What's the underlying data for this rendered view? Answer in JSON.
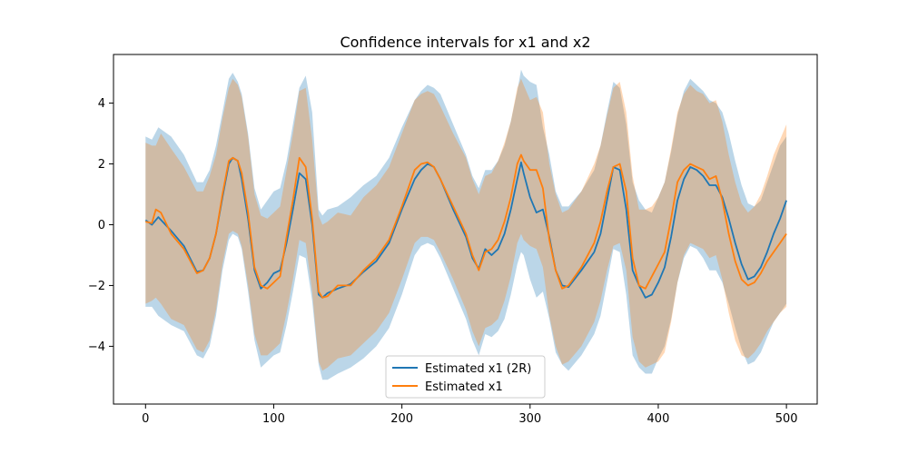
{
  "chart_data": {
    "type": "line",
    "title": "Confidence intervals for x1 and x2",
    "xlabel": "",
    "ylabel": "",
    "xlim": [
      -25,
      524
    ],
    "ylim": [
      -5.9,
      5.6
    ],
    "xticks": [
      0,
      100,
      200,
      300,
      400,
      500
    ],
    "xtick_labels": [
      "0",
      "100",
      "200",
      "300",
      "400",
      "500"
    ],
    "yticks": [
      -4,
      -2,
      0,
      2,
      4
    ],
    "ytick_labels": [
      "−4",
      "−2",
      "0",
      "2",
      "4"
    ],
    "grid": false,
    "legend_position": "lower center",
    "series": [
      {
        "name": "Estimated x1 (2R)",
        "color": "#1f77b4",
        "band_color": "#1f77b4",
        "band_opacity": 0.3,
        "x": [
          0,
          5,
          10,
          20,
          30,
          40,
          45,
          50,
          55,
          60,
          65,
          68,
          72,
          75,
          80,
          85,
          90,
          95,
          100,
          105,
          110,
          115,
          120,
          125,
          130,
          135,
          138,
          142,
          150,
          160,
          170,
          180,
          190,
          200,
          210,
          215,
          220,
          225,
          230,
          240,
          250,
          255,
          260,
          265,
          270,
          275,
          280,
          285,
          290,
          293,
          295,
          300,
          305,
          310,
          315,
          320,
          325,
          330,
          340,
          350,
          355,
          360,
          365,
          370,
          375,
          380,
          385,
          390,
          395,
          400,
          405,
          410,
          415,
          420,
          425,
          430,
          435,
          440,
          445,
          450,
          455,
          460,
          465,
          470,
          475,
          480,
          485,
          490,
          495,
          500
        ],
        "mean": [
          0.15,
          0.0,
          0.25,
          -0.2,
          -0.7,
          -1.55,
          -1.5,
          -1.1,
          -0.3,
          0.9,
          2.0,
          2.2,
          2.1,
          1.5,
          0.2,
          -1.5,
          -2.1,
          -1.9,
          -1.6,
          -1.5,
          -0.6,
          0.5,
          1.7,
          1.5,
          0.0,
          -2.3,
          -2.4,
          -2.25,
          -2.1,
          -1.95,
          -1.55,
          -1.2,
          -0.6,
          0.5,
          1.5,
          1.8,
          2.0,
          1.9,
          1.5,
          0.5,
          -0.4,
          -1.1,
          -1.45,
          -0.8,
          -1.0,
          -0.8,
          -0.3,
          0.5,
          1.5,
          2.05,
          1.7,
          0.9,
          0.4,
          0.5,
          -0.4,
          -1.5,
          -2.0,
          -2.05,
          -1.5,
          -0.9,
          -0.3,
          0.8,
          1.9,
          1.8,
          0.5,
          -1.5,
          -2.0,
          -2.4,
          -2.3,
          -1.9,
          -1.4,
          -0.4,
          0.8,
          1.5,
          1.9,
          1.8,
          1.6,
          1.3,
          1.3,
          0.9,
          0.2,
          -0.6,
          -1.3,
          -1.8,
          -1.7,
          -1.4,
          -0.9,
          -0.3,
          0.2,
          0.8
        ],
        "lower": [
          -2.7,
          -2.7,
          -3.0,
          -3.3,
          -3.5,
          -4.3,
          -4.4,
          -4.0,
          -3.0,
          -1.5,
          -0.5,
          -0.3,
          -0.4,
          -0.8,
          -2.2,
          -3.8,
          -4.7,
          -4.5,
          -4.3,
          -4.2,
          -3.3,
          -2.2,
          -1.0,
          -1.1,
          -2.5,
          -4.6,
          -5.1,
          -5.1,
          -4.9,
          -4.7,
          -4.4,
          -4.0,
          -3.4,
          -2.3,
          -1.0,
          -0.7,
          -0.6,
          -0.7,
          -1.1,
          -2.1,
          -3.1,
          -3.8,
          -4.3,
          -3.6,
          -3.7,
          -3.5,
          -3.1,
          -2.3,
          -1.3,
          -0.9,
          -1.0,
          -1.8,
          -2.4,
          -2.2,
          -3.1,
          -4.2,
          -4.6,
          -4.8,
          -4.3,
          -3.6,
          -3.0,
          -1.9,
          -0.8,
          -0.9,
          -2.3,
          -4.3,
          -4.7,
          -4.9,
          -4.9,
          -4.4,
          -4.0,
          -3.1,
          -1.9,
          -1.1,
          -0.7,
          -0.8,
          -1.1,
          -1.5,
          -1.5,
          -1.9,
          -2.6,
          -3.4,
          -4.1,
          -4.6,
          -4.5,
          -4.2,
          -3.7,
          -3.2,
          -2.9,
          -2.6
        ],
        "upper": [
          2.9,
          2.8,
          3.2,
          2.9,
          2.3,
          1.4,
          1.4,
          1.8,
          2.6,
          3.7,
          4.8,
          5.0,
          4.7,
          4.3,
          3.0,
          1.2,
          0.5,
          0.8,
          1.1,
          1.2,
          2.1,
          3.3,
          4.5,
          4.9,
          3.7,
          0.5,
          0.3,
          0.5,
          0.6,
          0.9,
          1.3,
          1.6,
          2.2,
          3.2,
          4.1,
          4.4,
          4.6,
          4.5,
          4.3,
          3.3,
          2.3,
          1.6,
          1.2,
          1.8,
          1.8,
          2.1,
          2.6,
          3.4,
          4.4,
          5.1,
          4.9,
          4.7,
          4.6,
          3.2,
          2.3,
          1.1,
          0.6,
          0.6,
          1.1,
          1.8,
          2.6,
          3.7,
          4.7,
          4.5,
          3.3,
          1.4,
          0.8,
          0.5,
          0.4,
          0.9,
          1.4,
          2.4,
          3.6,
          4.4,
          4.8,
          4.6,
          4.4,
          4.1,
          4.0,
          3.7,
          3.0,
          2.1,
          1.3,
          0.7,
          0.6,
          0.8,
          1.4,
          2.0,
          2.6,
          2.9
        ]
      },
      {
        "name": "Estimated x1",
        "color": "#ff7f0e",
        "band_color": "#ff7f0e",
        "band_opacity": 0.3,
        "x": [
          0,
          5,
          8,
          12,
          20,
          30,
          40,
          45,
          50,
          55,
          60,
          65,
          68,
          72,
          75,
          80,
          85,
          90,
          95,
          100,
          105,
          110,
          115,
          120,
          125,
          130,
          135,
          138,
          142,
          150,
          160,
          170,
          180,
          190,
          200,
          210,
          215,
          220,
          225,
          230,
          240,
          250,
          255,
          260,
          265,
          270,
          275,
          280,
          285,
          290,
          293,
          295,
          300,
          305,
          310,
          315,
          320,
          325,
          330,
          340,
          350,
          355,
          360,
          365,
          370,
          375,
          380,
          385,
          390,
          395,
          400,
          405,
          410,
          415,
          420,
          425,
          430,
          435,
          440,
          445,
          450,
          455,
          460,
          465,
          470,
          475,
          480,
          485,
          490,
          495,
          500
        ],
        "mean": [
          0.1,
          0.05,
          0.5,
          0.4,
          -0.3,
          -0.8,
          -1.6,
          -1.5,
          -1.1,
          -0.3,
          1.0,
          2.1,
          2.2,
          2.1,
          1.7,
          0.4,
          -1.4,
          -2.0,
          -2.1,
          -1.9,
          -1.7,
          -0.4,
          0.8,
          2.2,
          1.9,
          0.2,
          -2.2,
          -2.4,
          -2.35,
          -2.0,
          -2.0,
          -1.5,
          -1.1,
          -0.5,
          0.6,
          1.8,
          2.0,
          2.05,
          1.9,
          1.5,
          0.6,
          -0.3,
          -1.0,
          -1.5,
          -0.9,
          -0.8,
          -0.5,
          0.1,
          0.9,
          2.0,
          2.3,
          2.1,
          1.8,
          1.8,
          1.2,
          -0.5,
          -1.5,
          -2.1,
          -2.0,
          -1.4,
          -0.6,
          0.1,
          1.1,
          1.9,
          2.0,
          1.1,
          -1.1,
          -2.0,
          -2.1,
          -1.7,
          -1.3,
          -0.9,
          0.2,
          1.4,
          1.8,
          2.0,
          1.9,
          1.8,
          1.5,
          1.6,
          0.8,
          -0.3,
          -1.2,
          -1.8,
          -2.0,
          -1.9,
          -1.6,
          -1.2,
          -0.9,
          -0.6,
          -0.3
        ],
        "lower": [
          -2.6,
          -2.5,
          -2.4,
          -2.6,
          -3.1,
          -3.3,
          -4.1,
          -4.2,
          -3.8,
          -2.8,
          -1.3,
          -0.3,
          -0.2,
          -0.3,
          -0.7,
          -2.0,
          -3.6,
          -4.3,
          -4.3,
          -4.1,
          -3.9,
          -2.9,
          -1.8,
          -0.5,
          -0.6,
          -2.2,
          -4.5,
          -4.8,
          -4.7,
          -4.4,
          -4.3,
          -3.9,
          -3.5,
          -2.9,
          -1.8,
          -0.6,
          -0.4,
          -0.4,
          -0.5,
          -0.9,
          -1.8,
          -2.8,
          -3.5,
          -4.0,
          -3.4,
          -3.3,
          -3.1,
          -2.5,
          -1.7,
          -0.6,
          -0.3,
          -0.5,
          -0.7,
          -0.8,
          -1.4,
          -3.0,
          -4.0,
          -4.6,
          -4.5,
          -4.0,
          -3.2,
          -2.5,
          -1.5,
          -0.7,
          -0.6,
          -1.5,
          -3.7,
          -4.5,
          -4.7,
          -4.6,
          -4.5,
          -4.2,
          -3.2,
          -1.9,
          -1.0,
          -0.6,
          -0.7,
          -0.8,
          -1.1,
          -1.0,
          -1.8,
          -2.9,
          -3.8,
          -4.3,
          -4.4,
          -4.2,
          -3.9,
          -3.5,
          -3.2,
          -2.9,
          -2.7
        ],
        "upper": [
          2.7,
          2.6,
          2.6,
          3.0,
          2.5,
          1.9,
          1.1,
          1.1,
          1.6,
          2.3,
          3.5,
          4.5,
          4.8,
          4.6,
          4.2,
          2.9,
          1.0,
          0.3,
          0.2,
          0.4,
          0.6,
          1.8,
          3.0,
          4.4,
          4.5,
          2.8,
          0.3,
          0.0,
          0.1,
          0.4,
          0.3,
          0.9,
          1.3,
          1.9,
          3.0,
          4.1,
          4.3,
          4.4,
          4.3,
          3.9,
          3.0,
          2.2,
          1.5,
          1.0,
          1.6,
          1.7,
          2.1,
          2.7,
          3.4,
          4.5,
          4.8,
          4.6,
          4.1,
          4.2,
          3.7,
          2.0,
          1.0,
          0.4,
          0.5,
          1.1,
          2.0,
          2.6,
          3.6,
          4.5,
          4.7,
          3.7,
          1.6,
          0.5,
          0.5,
          0.6,
          0.9,
          1.4,
          2.5,
          3.7,
          4.3,
          4.6,
          4.4,
          4.3,
          4.0,
          4.1,
          3.4,
          2.3,
          1.4,
          0.7,
          0.4,
          0.6,
          1.0,
          1.6,
          2.3,
          2.8,
          3.3
        ]
      }
    ]
  }
}
